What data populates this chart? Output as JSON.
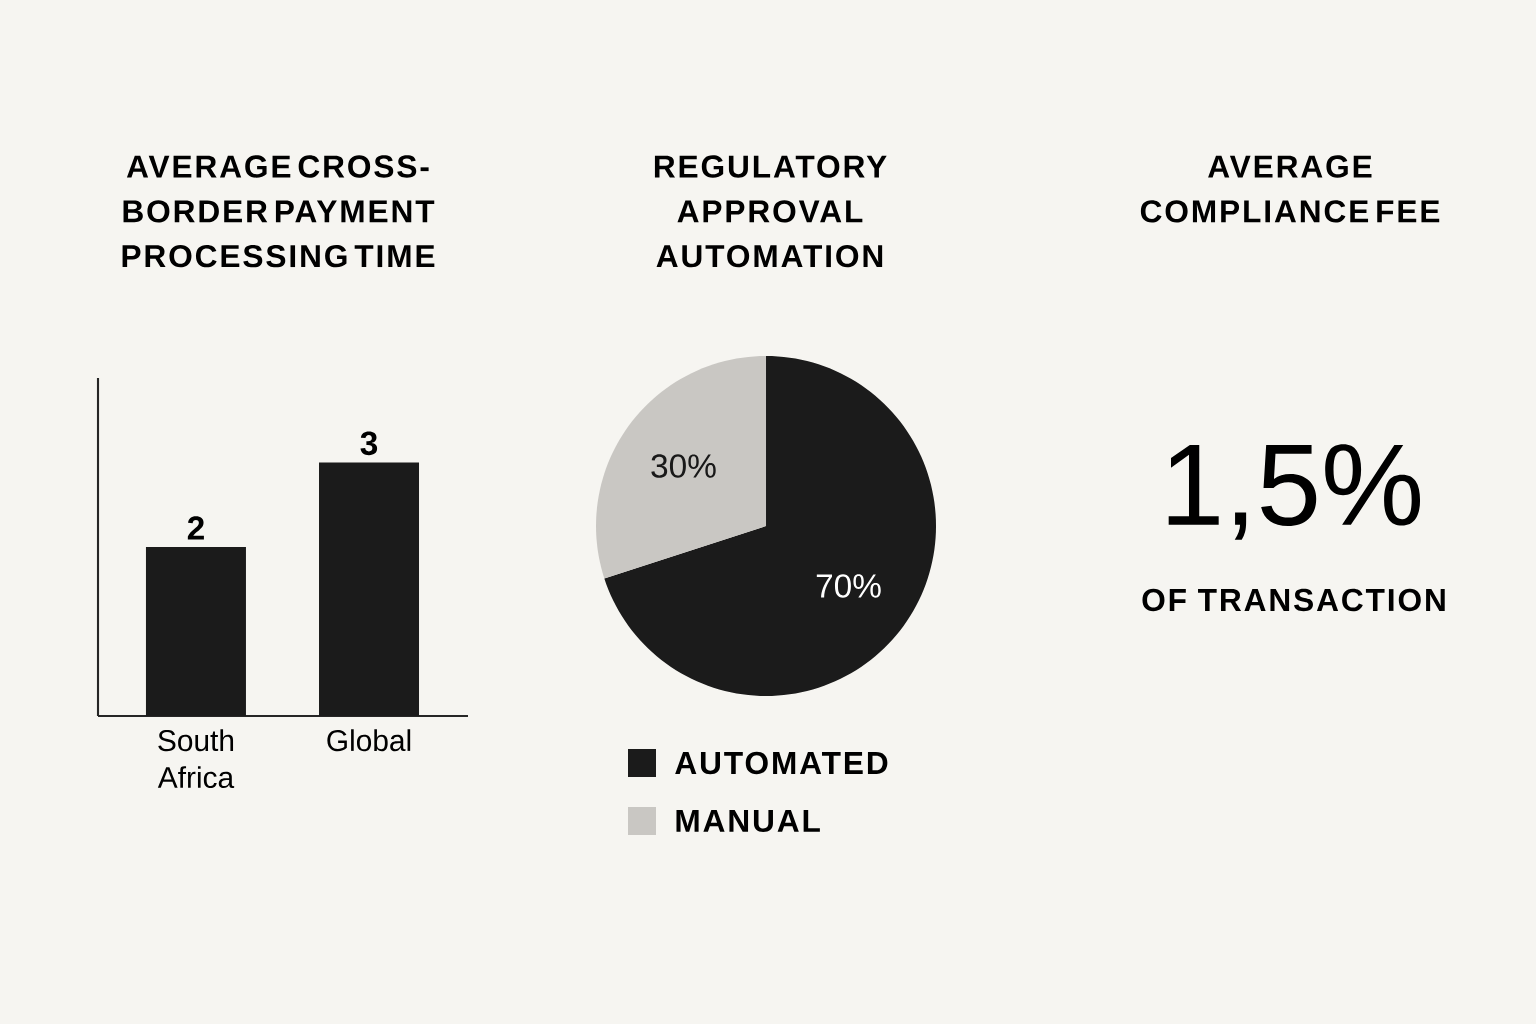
{
  "chart_data": [
    {
      "type": "bar",
      "title": "AVERAGE CROSS-BORDER PAYMENT PROCESSING TIME",
      "categories": [
        "South Africa",
        "Global"
      ],
      "values": [
        2,
        3
      ],
      "color": "#1b1b1b",
      "ylim": [
        0,
        4
      ],
      "data_labels": true
    },
    {
      "type": "pie",
      "title": "REGULATORY APPROVAL AUTOMATION",
      "categories": [
        "AUTOMATED",
        "MANUAL"
      ],
      "values": [
        70,
        30
      ],
      "colors": [
        "#1b1b1b",
        "#c9c7c3"
      ],
      "value_labels": [
        "70%",
        "30%"
      ],
      "legend": "bottom"
    },
    {
      "type": "other",
      "title": "AVERAGE COMPLIANCE FEE",
      "annotations": [
        "1,5%",
        "OF TRANSACTION"
      ]
    }
  ]
}
